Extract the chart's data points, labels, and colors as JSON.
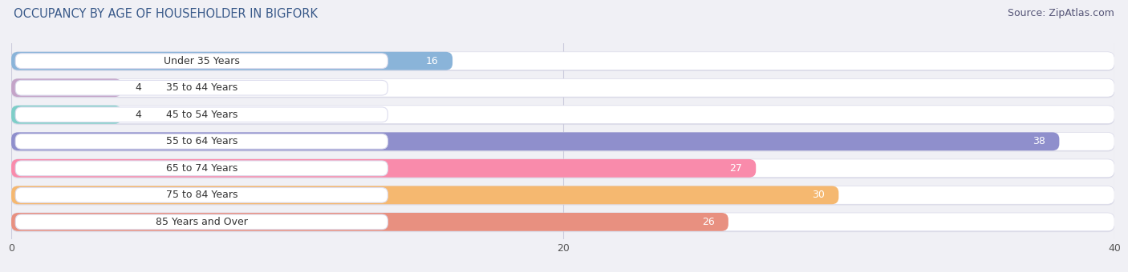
{
  "title": "OCCUPANCY BY AGE OF HOUSEHOLDER IN BIGFORK",
  "source": "Source: ZipAtlas.com",
  "categories": [
    "Under 35 Years",
    "35 to 44 Years",
    "45 to 54 Years",
    "55 to 64 Years",
    "65 to 74 Years",
    "75 to 84 Years",
    "85 Years and Over"
  ],
  "values": [
    16,
    4,
    4,
    38,
    27,
    30,
    26
  ],
  "bar_colors": [
    "#8ab4d9",
    "#c4a4c8",
    "#7ecec8",
    "#8f8fcc",
    "#f98bab",
    "#f5b870",
    "#e89080"
  ],
  "bar_bg_color": "#e8e8f0",
  "xlim": [
    0,
    40
  ],
  "xticks": [
    0,
    20,
    40
  ],
  "background_color": "#f0f0f5",
  "title_fontsize": 10.5,
  "source_fontsize": 9,
  "label_fontsize": 9,
  "value_fontsize": 9,
  "bar_height": 0.68,
  "label_pill_color": "#ffffff",
  "label_text_color": "#333333",
  "value_inside_color": "#ffffff",
  "value_outside_color": "#333333",
  "inside_threshold": 8
}
